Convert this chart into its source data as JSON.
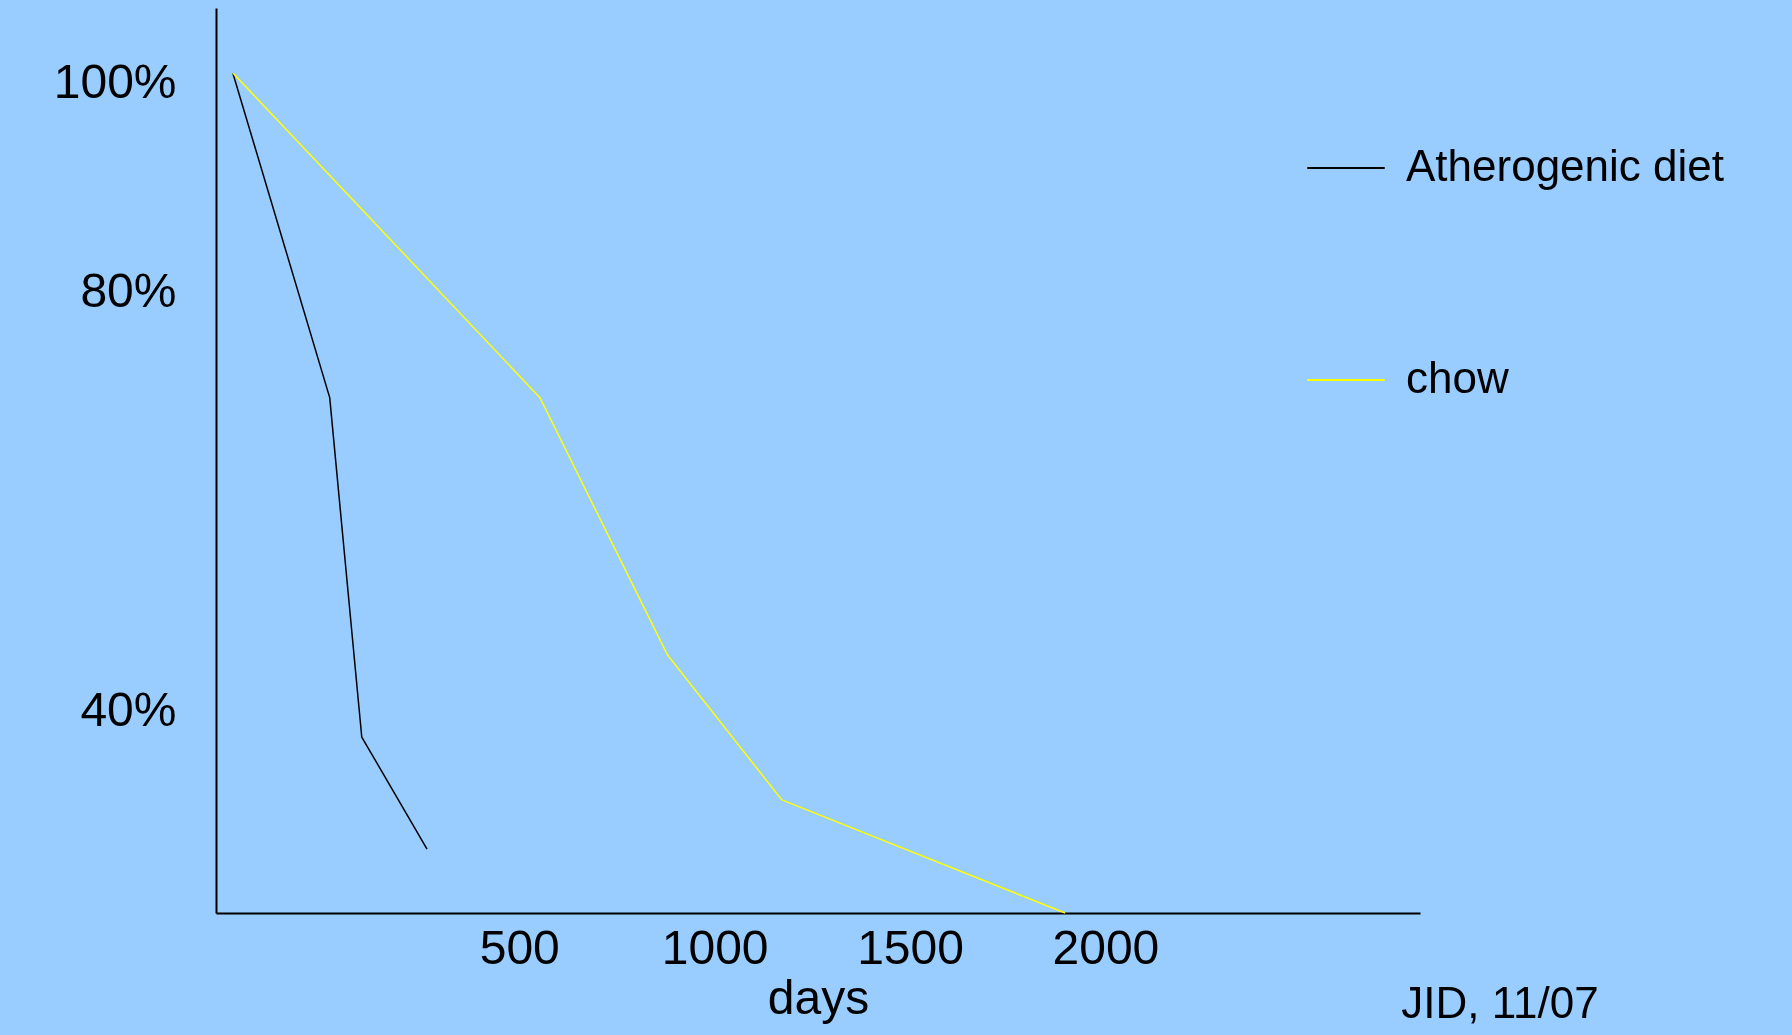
{
  "chart_data": {
    "type": "line",
    "xlabel": "days",
    "annotations": [
      "JID, 11/07"
    ],
    "xlim": [
      -276,
      2805
    ],
    "xticks": [
      500,
      1000,
      1500,
      2000
    ],
    "ylim": [
      20.8,
      107.2
    ],
    "yticks": [
      {
        "value": 100,
        "label": "100%"
      },
      {
        "value": 80,
        "label": "80%"
      },
      {
        "value": 40,
        "label": "40%"
      }
    ],
    "grid": false,
    "legend": "right",
    "marker": "none",
    "line_style": "solid",
    "series": [
      {
        "name": "Atherogenic diet",
        "color": "#000000",
        "x": [
          -233,
          15,
          97,
          264
        ],
        "values": [
          101,
          70,
          37.6,
          26.9
        ]
      },
      {
        "name": "chow",
        "color": "#ffff00",
        "x": [
          -233,
          553,
          880,
          1172,
          1897
        ],
        "values": [
          101,
          70,
          45.4,
          31.6,
          20.8
        ]
      }
    ]
  }
}
